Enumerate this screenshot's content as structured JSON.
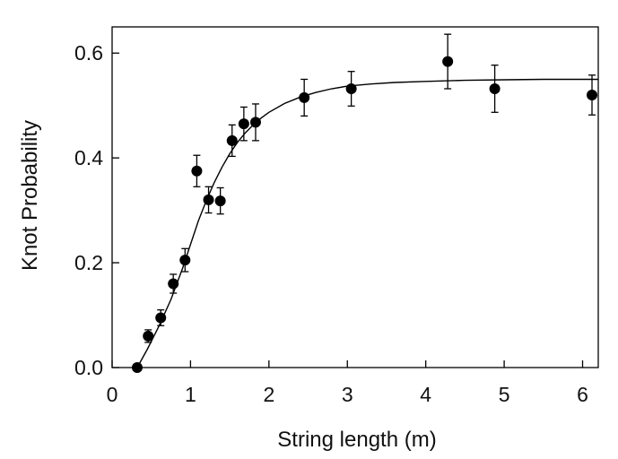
{
  "chart_data": {
    "type": "scatter",
    "title": "",
    "xlabel": "String length (m)",
    "ylabel": "Knot Probability",
    "xlim": [
      0,
      6.2
    ],
    "ylim": [
      0,
      0.65
    ],
    "x_ticks": [
      0,
      1,
      2,
      3,
      4,
      5,
      6
    ],
    "x_tick_labels": [
      "0",
      "1",
      "2",
      "3",
      "4",
      "5",
      "6"
    ],
    "y_ticks": [
      0.0,
      0.2,
      0.4,
      0.6
    ],
    "y_tick_labels": [
      "0.0",
      "0.2",
      "0.4",
      "0.6"
    ],
    "grid": false,
    "points": [
      {
        "x": 0.32,
        "y": 0.0,
        "err": 0.0
      },
      {
        "x": 0.46,
        "y": 0.06,
        "err": 0.012
      },
      {
        "x": 0.62,
        "y": 0.095,
        "err": 0.015
      },
      {
        "x": 0.78,
        "y": 0.16,
        "err": 0.018
      },
      {
        "x": 0.93,
        "y": 0.205,
        "err": 0.022
      },
      {
        "x": 1.08,
        "y": 0.375,
        "err": 0.03
      },
      {
        "x": 1.23,
        "y": 0.32,
        "err": 0.025
      },
      {
        "x": 1.38,
        "y": 0.318,
        "err": 0.025
      },
      {
        "x": 1.53,
        "y": 0.433,
        "err": 0.03
      },
      {
        "x": 1.68,
        "y": 0.465,
        "err": 0.032
      },
      {
        "x": 1.83,
        "y": 0.468,
        "err": 0.035
      },
      {
        "x": 2.45,
        "y": 0.515,
        "err": 0.035
      },
      {
        "x": 3.05,
        "y": 0.532,
        "err": 0.033
      },
      {
        "x": 4.28,
        "y": 0.584,
        "err": 0.052
      },
      {
        "x": 4.88,
        "y": 0.532,
        "err": 0.045
      },
      {
        "x": 6.12,
        "y": 0.52,
        "err": 0.038
      }
    ],
    "fit_curve": {
      "x": [
        0.32,
        0.45,
        0.6,
        0.75,
        0.9,
        1.0,
        1.1,
        1.2,
        1.3,
        1.4,
        1.5,
        1.6,
        1.7,
        1.8,
        1.9,
        2.0,
        2.2,
        2.4,
        2.6,
        2.8,
        3.0,
        3.3,
        3.6,
        4.0,
        4.5,
        5.0,
        5.5,
        6.0,
        6.2
      ],
      "y": [
        0.0,
        0.035,
        0.08,
        0.13,
        0.19,
        0.235,
        0.28,
        0.318,
        0.352,
        0.382,
        0.408,
        0.43,
        0.448,
        0.463,
        0.476,
        0.487,
        0.504,
        0.516,
        0.525,
        0.532,
        0.537,
        0.541,
        0.544,
        0.546,
        0.548,
        0.549,
        0.55,
        0.55,
        0.55
      ]
    }
  }
}
